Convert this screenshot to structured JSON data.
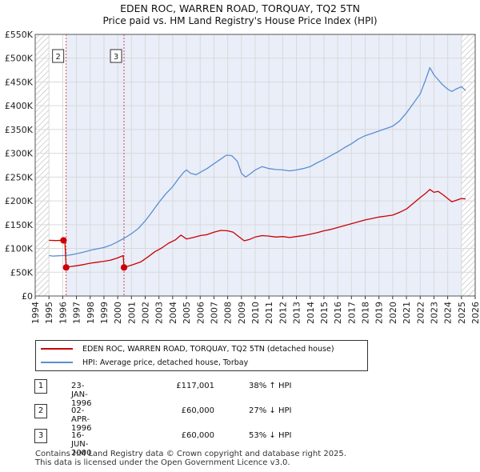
{
  "chart_data": {
    "type": "line",
    "title": "EDEN ROC, WARREN ROAD, TORQUAY, TQ2 5TN",
    "subtitle": "Price paid vs. HM Land Registry's House Price Index (HPI)",
    "xlim": [
      1994,
      2026
    ],
    "ylim": [
      0,
      550000
    ],
    "x_ticks": [
      "1994",
      "1995",
      "1996",
      "1997",
      "1998",
      "1999",
      "2000",
      "2001",
      "2002",
      "2003",
      "2004",
      "2005",
      "2006",
      "2007",
      "2008",
      "2009",
      "2010",
      "2011",
      "2012",
      "2013",
      "2014",
      "2015",
      "2016",
      "2017",
      "2018",
      "2019",
      "2020",
      "2021",
      "2022",
      "2023",
      "2024",
      "2025",
      "2026"
    ],
    "y_ticks": [
      {
        "v": 0,
        "label": "£0"
      },
      {
        "v": 50000,
        "label": "£50K"
      },
      {
        "v": 100000,
        "label": "£100K"
      },
      {
        "v": 150000,
        "label": "£150K"
      },
      {
        "v": 200000,
        "label": "£200K"
      },
      {
        "v": 250000,
        "label": "£250K"
      },
      {
        "v": 300000,
        "label": "£300K"
      },
      {
        "v": 350000,
        "label": "£350K"
      },
      {
        "v": 400000,
        "label": "£400K"
      },
      {
        "v": 450000,
        "label": "£450K"
      },
      {
        "v": 500000,
        "label": "£500K"
      },
      {
        "v": 550000,
        "label": "£550K"
      }
    ],
    "grid": true,
    "shaded_range": [
      1996.25,
      2025.0
    ],
    "hatched_ranges": [
      [
        1994,
        1995.0
      ],
      [
        2025.0,
        2026
      ]
    ],
    "series": [
      {
        "name": "EDEN ROC, WARREN ROAD, TORQUAY, TQ2 5TN (detached house)",
        "color": "#cc0000",
        "points": [
          [
            1995.0,
            117000
          ],
          [
            1995.5,
            116500
          ],
          [
            1996.06,
            117001
          ],
          [
            1996.15,
            118000
          ],
          [
            1996.25,
            60000
          ],
          [
            1996.5,
            61500
          ],
          [
            1997.0,
            63500
          ],
          [
            1997.5,
            66000
          ],
          [
            1998.0,
            69000
          ],
          [
            1998.5,
            71000
          ],
          [
            1999.0,
            73000
          ],
          [
            1999.5,
            75500
          ],
          [
            2000.0,
            80000
          ],
          [
            2000.4,
            85000
          ],
          [
            2000.46,
            60000
          ],
          [
            2000.8,
            63000
          ],
          [
            2001.2,
            67000
          ],
          [
            2001.7,
            72000
          ],
          [
            2002.2,
            82000
          ],
          [
            2002.7,
            93000
          ],
          [
            2003.2,
            101000
          ],
          [
            2003.7,
            111000
          ],
          [
            2004.2,
            118000
          ],
          [
            2004.6,
            128000
          ],
          [
            2005.0,
            120000
          ],
          [
            2005.5,
            123000
          ],
          [
            2006.0,
            127000
          ],
          [
            2006.5,
            129000
          ],
          [
            2007.0,
            134000
          ],
          [
            2007.5,
            138000
          ],
          [
            2008.0,
            137000
          ],
          [
            2008.4,
            134000
          ],
          [
            2008.8,
            125000
          ],
          [
            2009.2,
            116000
          ],
          [
            2009.6,
            119000
          ],
          [
            2010.0,
            124000
          ],
          [
            2010.5,
            127000
          ],
          [
            2011.0,
            126000
          ],
          [
            2011.5,
            124000
          ],
          [
            2012.0,
            125000
          ],
          [
            2012.5,
            123000
          ],
          [
            2013.0,
            125000
          ],
          [
            2013.5,
            127000
          ],
          [
            2014.0,
            130000
          ],
          [
            2014.5,
            133000
          ],
          [
            2015.0,
            137000
          ],
          [
            2015.5,
            140000
          ],
          [
            2016.0,
            144000
          ],
          [
            2016.5,
            148000
          ],
          [
            2017.0,
            152000
          ],
          [
            2017.5,
            156000
          ],
          [
            2018.0,
            160000
          ],
          [
            2018.5,
            163000
          ],
          [
            2019.0,
            166000
          ],
          [
            2019.5,
            168000
          ],
          [
            2020.0,
            170000
          ],
          [
            2020.5,
            176000
          ],
          [
            2021.0,
            183000
          ],
          [
            2021.5,
            195000
          ],
          [
            2022.0,
            207000
          ],
          [
            2022.4,
            216000
          ],
          [
            2022.7,
            224000
          ],
          [
            2023.0,
            218000
          ],
          [
            2023.3,
            220000
          ],
          [
            2023.7,
            212000
          ],
          [
            2024.0,
            205000
          ],
          [
            2024.3,
            198000
          ],
          [
            2024.6,
            201000
          ],
          [
            2025.0,
            205000
          ],
          [
            2025.3,
            204000
          ]
        ]
      },
      {
        "name": "HPI: Average price, detached house, Torbay",
        "color": "#5b8fd0",
        "points": [
          [
            1995.0,
            85000
          ],
          [
            1995.3,
            84000
          ],
          [
            1995.6,
            84500
          ],
          [
            1996.0,
            85000
          ],
          [
            1996.5,
            86000
          ],
          [
            1997.0,
            89000
          ],
          [
            1997.5,
            92000
          ],
          [
            1998.0,
            96000
          ],
          [
            1998.5,
            99000
          ],
          [
            1999.0,
            102000
          ],
          [
            1999.5,
            107000
          ],
          [
            2000.0,
            114000
          ],
          [
            2000.5,
            122000
          ],
          [
            2001.0,
            131000
          ],
          [
            2001.5,
            142000
          ],
          [
            2002.0,
            158000
          ],
          [
            2002.5,
            177000
          ],
          [
            2003.0,
            197000
          ],
          [
            2003.5,
            215000
          ],
          [
            2004.0,
            230000
          ],
          [
            2004.4,
            246000
          ],
          [
            2004.8,
            260000
          ],
          [
            2005.0,
            265000
          ],
          [
            2005.3,
            258000
          ],
          [
            2005.7,
            255000
          ],
          [
            2006.0,
            260000
          ],
          [
            2006.5,
            268000
          ],
          [
            2007.0,
            278000
          ],
          [
            2007.5,
            288000
          ],
          [
            2007.9,
            296000
          ],
          [
            2008.3,
            295000
          ],
          [
            2008.7,
            283000
          ],
          [
            2009.0,
            258000
          ],
          [
            2009.3,
            250000
          ],
          [
            2009.7,
            258000
          ],
          [
            2010.0,
            265000
          ],
          [
            2010.5,
            272000
          ],
          [
            2011.0,
            268000
          ],
          [
            2011.5,
            266000
          ],
          [
            2012.0,
            265000
          ],
          [
            2012.5,
            263000
          ],
          [
            2013.0,
            265000
          ],
          [
            2013.5,
            268000
          ],
          [
            2014.0,
            272000
          ],
          [
            2014.5,
            280000
          ],
          [
            2015.0,
            287000
          ],
          [
            2015.5,
            295000
          ],
          [
            2016.0,
            303000
          ],
          [
            2016.5,
            312000
          ],
          [
            2017.0,
            320000
          ],
          [
            2017.5,
            330000
          ],
          [
            2018.0,
            337000
          ],
          [
            2018.5,
            342000
          ],
          [
            2019.0,
            347000
          ],
          [
            2019.5,
            352000
          ],
          [
            2020.0,
            357000
          ],
          [
            2020.5,
            368000
          ],
          [
            2021.0,
            385000
          ],
          [
            2021.5,
            405000
          ],
          [
            2022.0,
            425000
          ],
          [
            2022.4,
            455000
          ],
          [
            2022.7,
            480000
          ],
          [
            2023.0,
            465000
          ],
          [
            2023.3,
            455000
          ],
          [
            2023.6,
            445000
          ],
          [
            2024.0,
            435000
          ],
          [
            2024.3,
            430000
          ],
          [
            2024.6,
            435000
          ],
          [
            2025.0,
            440000
          ],
          [
            2025.3,
            432000
          ]
        ]
      }
    ],
    "transactions": [
      {
        "label": "1",
        "x": 1996.06,
        "price": 117001
      },
      {
        "label": "2",
        "x": 1996.25,
        "price": 60000
      },
      {
        "label": "3",
        "x": 2000.46,
        "price": 60000
      }
    ],
    "vlines": [
      {
        "label": "2",
        "x": 1996.25
      },
      {
        "label": "3",
        "x": 2000.46
      }
    ]
  },
  "legend": {
    "items": [
      {
        "label": "EDEN ROC, WARREN ROAD, TORQUAY, TQ2 5TN (detached house)",
        "color": "#cc0000"
      },
      {
        "label": "HPI: Average price, detached house, Torbay",
        "color": "#5b8fd0"
      }
    ]
  },
  "transactions_table": [
    {
      "num": "1",
      "date": "23-JAN-1996",
      "price": "£117,001",
      "hpi": "38% ↑ HPI"
    },
    {
      "num": "2",
      "date": "02-APR-1996",
      "price": "£60,000",
      "hpi": "27% ↓ HPI"
    },
    {
      "num": "3",
      "date": "16-JUN-2000",
      "price": "£60,000",
      "hpi": "53% ↓ HPI"
    }
  ],
  "footer": {
    "line1": "Contains HM Land Registry data © Crown copyright and database right 2025.",
    "line2": "This data is licensed under the Open Government Licence v3.0."
  }
}
